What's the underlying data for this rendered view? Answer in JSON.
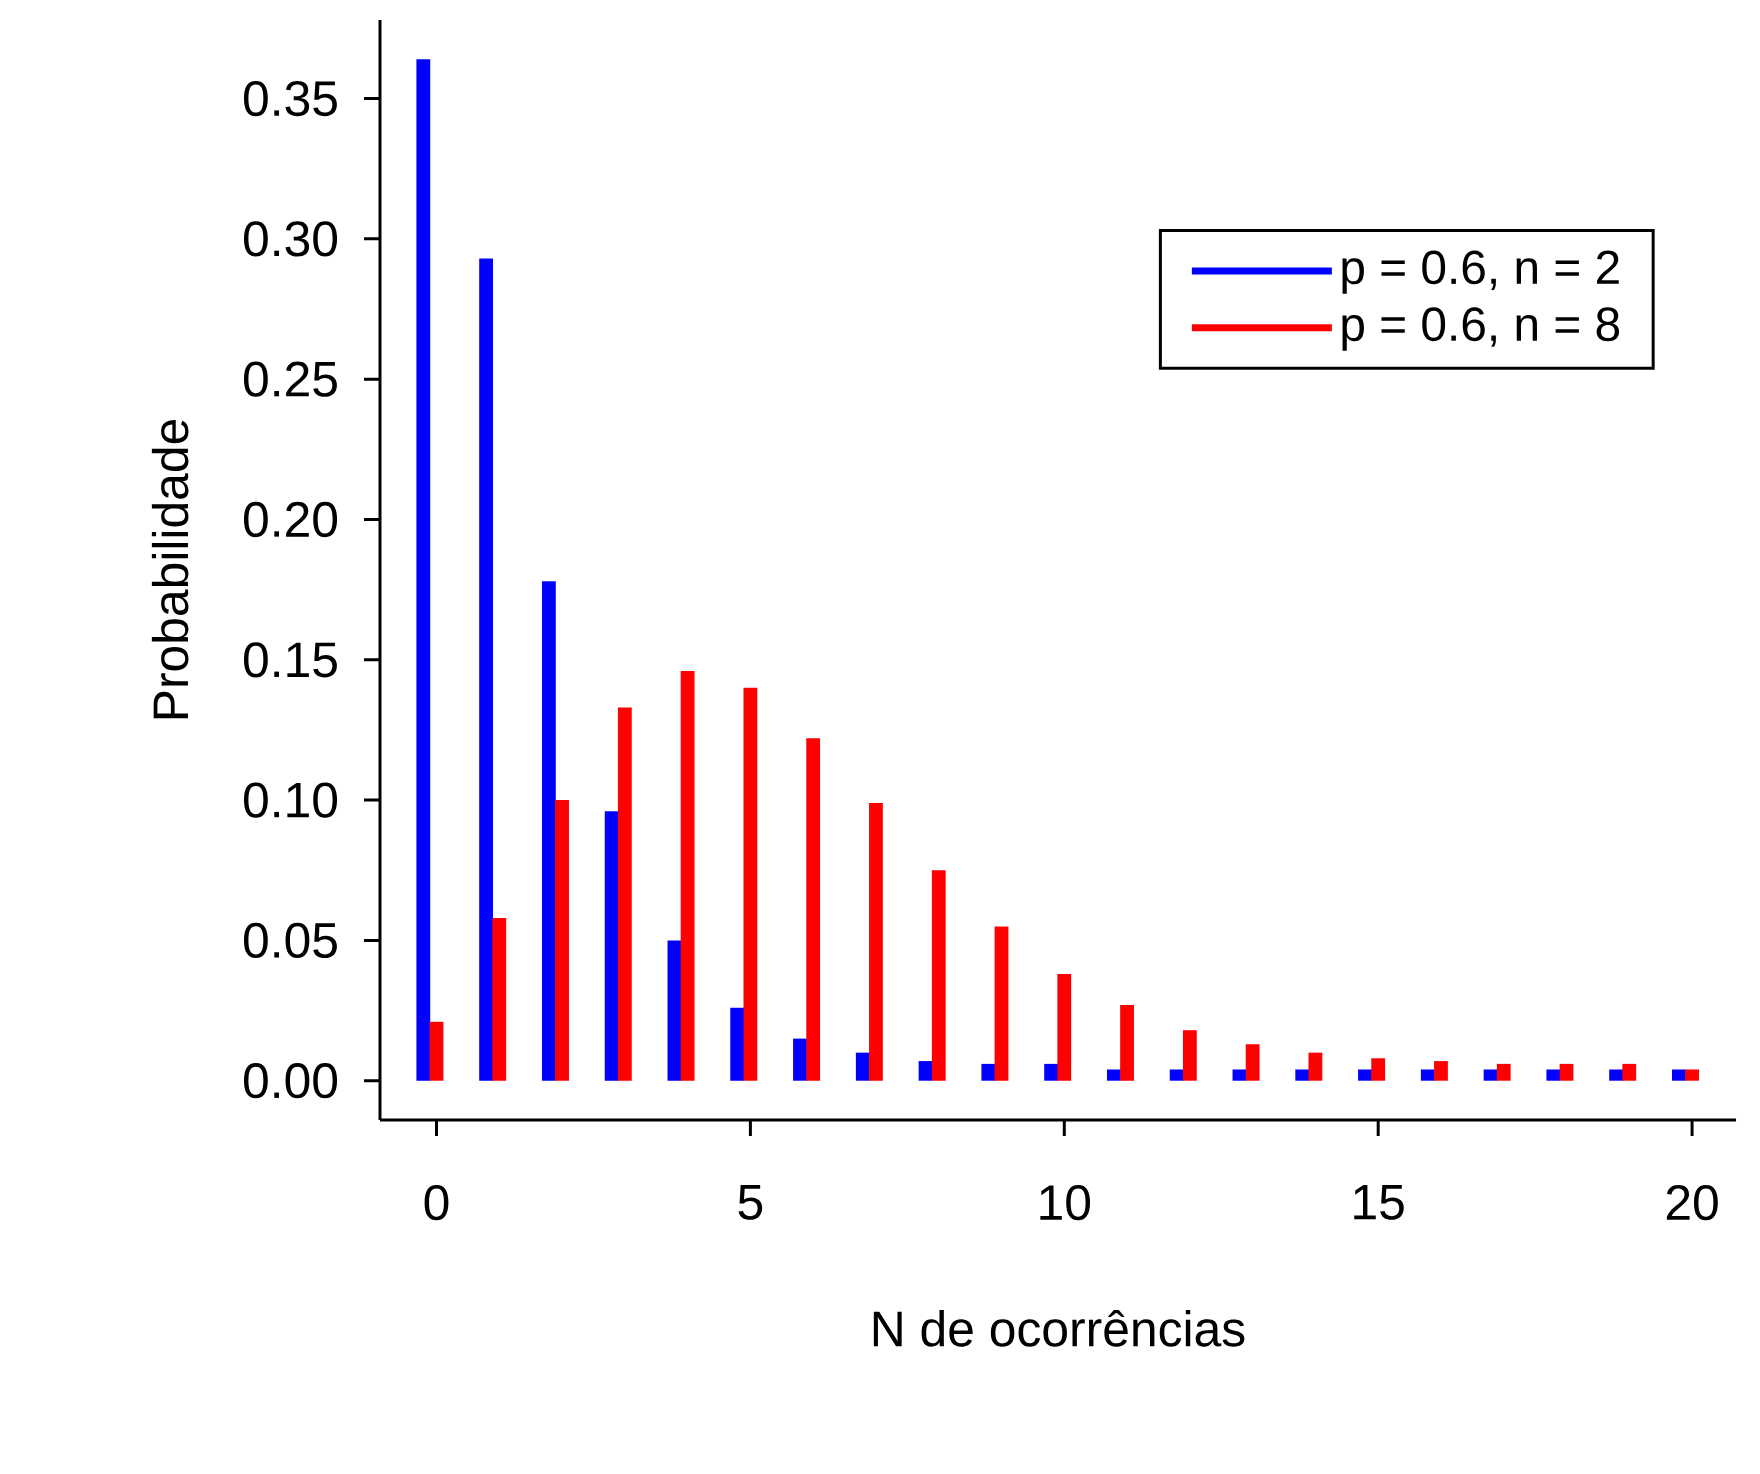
{
  "chart_data": {
    "type": "bar",
    "xlabel": "N de ocorrências",
    "ylabel": "Probabilidade",
    "x": [
      0,
      1,
      2,
      3,
      4,
      5,
      6,
      7,
      8,
      9,
      10,
      11,
      12,
      13,
      14,
      15,
      16,
      17,
      18,
      19,
      20
    ],
    "series": [
      {
        "name": "p = 0.6, n = 2",
        "color": "#0000ff",
        "values": [
          0.364,
          0.293,
          0.178,
          0.096,
          0.05,
          0.026,
          0.015,
          0.01,
          0.007,
          0.006,
          0.006,
          0.004,
          0.004,
          0.004,
          0.004,
          0.004,
          0.004,
          0.004,
          0.004,
          0.004,
          0.004
        ]
      },
      {
        "name": "p = 0.6, n = 8",
        "color": "#ff0000",
        "values": [
          0.021,
          0.058,
          0.1,
          0.133,
          0.146,
          0.14,
          0.122,
          0.099,
          0.075,
          0.055,
          0.038,
          0.027,
          0.018,
          0.013,
          0.01,
          0.008,
          0.007,
          0.006,
          0.006,
          0.006,
          0.004
        ]
      }
    ],
    "xlim": [
      -0.9,
      20.7
    ],
    "ylim": [
      -0.014,
      0.378
    ],
    "xticks": [
      0,
      5,
      10,
      15,
      20
    ],
    "yticks": [
      {
        "value": 0,
        "label": "0.00"
      },
      {
        "value": 0.05,
        "label": "0.05"
      },
      {
        "value": 0.1,
        "label": "0.10"
      },
      {
        "value": 0.15,
        "label": "0.15"
      },
      {
        "value": 0.2,
        "label": "0.20"
      },
      {
        "value": 0.25,
        "label": "0.25"
      },
      {
        "value": 0.3,
        "label": "0.30"
      },
      {
        "value": 0.35,
        "label": "0.35"
      }
    ],
    "legend": "top right"
  }
}
